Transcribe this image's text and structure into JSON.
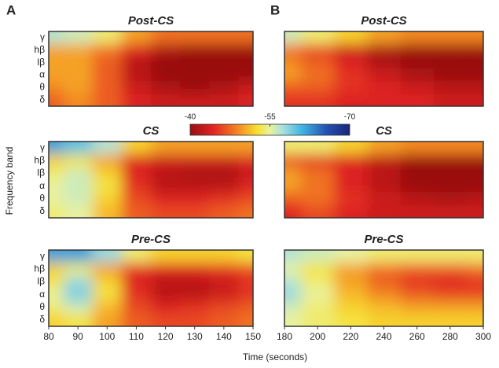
{
  "panel_labels": [
    "A",
    "B"
  ],
  "y_label": "Frequency band",
  "x_label": "Time (seconds)",
  "colorbar": {
    "lim": [
      -40,
      -70
    ],
    "ticks": [
      -40,
      -55,
      -70
    ]
  },
  "chart_data": [
    {
      "type": "heatmap",
      "title": "Post-CS",
      "rows": [
        "γ",
        "hβ",
        "lβ",
        "α",
        "θ",
        "δ"
      ],
      "x": [
        80,
        90,
        100,
        110,
        120,
        130,
        140,
        150
      ],
      "xlim": [
        80,
        150
      ],
      "values": [
        [
          -57,
          -56,
          -54,
          -50,
          -48,
          -48,
          -48,
          -48
        ],
        [
          -50,
          -50,
          -48,
          -44,
          -41,
          -39,
          -39,
          -40
        ],
        [
          -50,
          -50,
          -47,
          -42,
          -38,
          -37,
          -37,
          -39
        ],
        [
          -50,
          -50,
          -47,
          -42,
          -38,
          -37,
          -37,
          -40
        ],
        [
          -49,
          -50,
          -47,
          -43,
          -41,
          -40,
          -41,
          -43
        ],
        [
          -47,
          -49,
          -47,
          -44,
          -43,
          -43,
          -43,
          -44
        ]
      ]
    },
    {
      "type": "heatmap",
      "title": "Post-CS",
      "x": [
        180,
        200,
        220,
        240,
        260,
        280,
        300
      ],
      "xlim": [
        180,
        300
      ],
      "values": [
        [
          -56,
          -54,
          -52,
          -50,
          -49,
          -49,
          -49
        ],
        [
          -48,
          -46,
          -43,
          -41,
          -39,
          -38,
          -38
        ],
        [
          -49,
          -47,
          -44,
          -41,
          -39,
          -38,
          -38
        ],
        [
          -50,
          -48,
          -45,
          -43,
          -41,
          -40,
          -40
        ],
        [
          -47,
          -47,
          -45,
          -44,
          -43,
          -42,
          -42
        ],
        [
          -45,
          -45,
          -44,
          -44,
          -44,
          -43,
          -43
        ]
      ]
    },
    {
      "type": "heatmap",
      "title": "CS",
      "rows": [
        "γ",
        "hβ",
        "lβ",
        "α",
        "θ",
        "δ"
      ],
      "x": [
        80,
        90,
        100,
        110,
        120,
        130,
        140,
        150
      ],
      "xlim": [
        80,
        150
      ],
      "values": [
        [
          -62,
          -60,
          -57,
          -52,
          -50,
          -50,
          -50,
          -50
        ],
        [
          -52,
          -53,
          -50,
          -44,
          -43,
          -43,
          -43,
          -44
        ],
        [
          -54,
          -56,
          -52,
          -44,
          -42,
          -41,
          -41,
          -43
        ],
        [
          -55,
          -56,
          -53,
          -45,
          -42,
          -42,
          -42,
          -44
        ],
        [
          -55,
          -56,
          -52,
          -46,
          -44,
          -44,
          -45,
          -46
        ],
        [
          -54,
          -55,
          -51,
          -47,
          -46,
          -46,
          -47,
          -48
        ]
      ]
    },
    {
      "type": "heatmap",
      "title": "CS",
      "x": [
        180,
        200,
        220,
        240,
        260,
        280,
        300
      ],
      "xlim": [
        180,
        300
      ],
      "values": [
        [
          -54,
          -54,
          -52,
          -50,
          -49,
          -49,
          -49
        ],
        [
          -46,
          -45,
          -44,
          -42,
          -40,
          -39,
          -39
        ],
        [
          -50,
          -48,
          -44,
          -42,
          -39,
          -38,
          -38
        ],
        [
          -50,
          -48,
          -44,
          -42,
          -40,
          -39,
          -39
        ],
        [
          -47,
          -48,
          -45,
          -43,
          -42,
          -41,
          -42
        ],
        [
          -44,
          -46,
          -44,
          -43,
          -43,
          -43,
          -43
        ]
      ]
    },
    {
      "type": "heatmap",
      "title": "Pre-CS",
      "rows": [
        "γ",
        "hβ",
        "lβ",
        "α",
        "θ",
        "δ"
      ],
      "x": [
        80,
        90,
        100,
        110,
        120,
        130,
        140,
        150
      ],
      "xlim": [
        80,
        150
      ],
      "xticks": [
        80,
        90,
        100,
        110,
        120,
        130,
        140,
        150
      ],
      "values": [
        [
          -62,
          -62,
          -58,
          -54,
          -52,
          -52,
          -52,
          -53
        ],
        [
          -52,
          -54,
          -50,
          -45,
          -44,
          -44,
          -45,
          -46
        ],
        [
          -53,
          -58,
          -52,
          -44,
          -42,
          -42,
          -43,
          -45
        ],
        [
          -55,
          -59,
          -53,
          -45,
          -42,
          -42,
          -43,
          -45
        ],
        [
          -54,
          -56,
          -51,
          -46,
          -44,
          -45,
          -46,
          -47
        ],
        [
          -52,
          -53,
          -50,
          -47,
          -46,
          -46,
          -47,
          -48
        ]
      ]
    },
    {
      "type": "heatmap",
      "title": "Pre-CS",
      "x": [
        180,
        200,
        220,
        240,
        260,
        280,
        300
      ],
      "xlim": [
        180,
        300
      ],
      "xticks": [
        180,
        200,
        220,
        240,
        260,
        280,
        300
      ],
      "values": [
        [
          -57,
          -56,
          -55,
          -54,
          -54,
          -54,
          -54
        ],
        [
          -55,
          -53,
          -50,
          -48,
          -47,
          -47,
          -48
        ],
        [
          -57,
          -54,
          -50,
          -47,
          -45,
          -44,
          -45
        ],
        [
          -58,
          -55,
          -51,
          -49,
          -47,
          -46,
          -46
        ],
        [
          -56,
          -54,
          -52,
          -51,
          -50,
          -50,
          -50
        ],
        [
          -55,
          -54,
          -53,
          -52,
          -52,
          -52,
          -52
        ]
      ]
    }
  ]
}
